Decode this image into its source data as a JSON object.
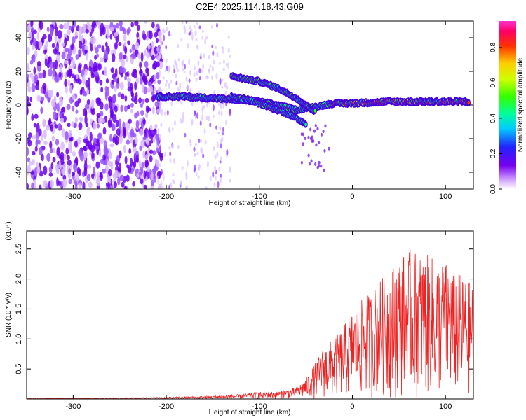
{
  "title": "C2E4.2025.114.18.43.G09",
  "chart_data": [
    {
      "type": "heatmap",
      "xlabel": "Height of straight line (km)",
      "ylabel": "Frequency (Hz)",
      "xlim": [
        -350,
        130
      ],
      "ylim": [
        -50,
        50
      ],
      "xticks": [
        -300,
        -200,
        -100,
        0,
        100
      ],
      "yticks": [
        -40,
        -20,
        0,
        20,
        40
      ],
      "colorbar": {
        "label": "Normalized spectral amplitude",
        "range": [
          0.0,
          0.95
        ],
        "ticks": [
          0.0,
          0.2,
          0.4,
          0.6,
          0.8
        ]
      },
      "tracks": [
        {
          "name": "main",
          "x": [
            -210,
            -180,
            -150,
            -120,
            -100,
            -80,
            -60,
            -50,
            -40,
            -20,
            0,
            40,
            80,
            125
          ],
          "f": [
            5,
            5,
            4,
            3,
            2,
            0,
            -3,
            -2,
            -1,
            1,
            1,
            2,
            2,
            2
          ]
        },
        {
          "name": "upper-branch",
          "x": [
            -130,
            -100,
            -80,
            -60,
            -40
          ],
          "f": [
            17,
            14,
            10,
            4,
            -4
          ]
        },
        {
          "name": "lower-branch",
          "x": [
            -130,
            -110,
            -90,
            -70,
            -60,
            -50
          ],
          "f": [
            5,
            3,
            -1,
            -5,
            -8,
            -11
          ]
        }
      ]
    },
    {
      "type": "line",
      "xlabel": "Height of straight line (km)",
      "ylabel": "SNR (10 * v/v)",
      "scale_label": "(x10⁴)",
      "xlim": [
        -350,
        130
      ],
      "ylim": [
        0,
        2.8
      ],
      "xticks": [
        -300,
        -200,
        -100,
        0,
        100
      ],
      "yticks": [
        0.5,
        1.0,
        1.5,
        2.0,
        2.5
      ],
      "color": "#ee2222",
      "envelope": {
        "x": [
          -350,
          -250,
          -200,
          -150,
          -120,
          -100,
          -80,
          -60,
          -50,
          -40,
          -30,
          -20,
          -10,
          0,
          20,
          40,
          60,
          80,
          100,
          130
        ],
        "peak": [
          0.01,
          0.02,
          0.03,
          0.05,
          0.08,
          0.12,
          0.13,
          0.2,
          0.35,
          0.6,
          0.9,
          1.0,
          1.2,
          1.5,
          1.8,
          2.2,
          2.5,
          2.4,
          2.3,
          1.9
        ]
      }
    }
  ]
}
